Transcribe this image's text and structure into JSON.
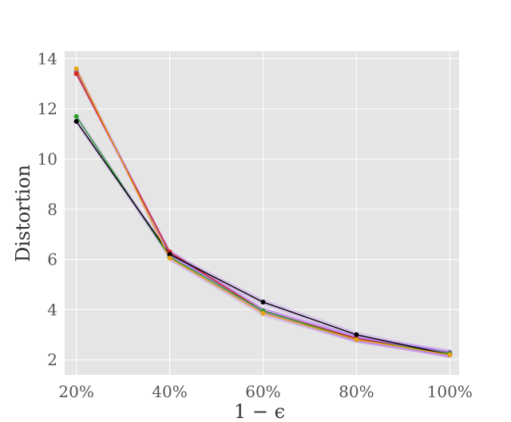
{
  "chart_data": {
    "type": "line",
    "title": "",
    "xlabel": "1 − ϵ",
    "ylabel": "Distortion",
    "categories": [
      "20%",
      "40%",
      "60%",
      "80%",
      "100%"
    ],
    "x": [
      20,
      40,
      60,
      80,
      100
    ],
    "xlim": [
      17.5,
      102
    ],
    "ylim": [
      1.4,
      14.3
    ],
    "yticks": [
      2,
      4,
      6,
      8,
      10,
      12,
      14
    ],
    "grid": true,
    "background": "#e5e5e5",
    "grid_color": "#ffffff",
    "band_color": "#a855f7",
    "series": [
      {
        "color": "#9467bd",
        "values": [
          13.5,
          6.25,
          3.95,
          2.85,
          2.3
        ]
      },
      {
        "color": "#d62728",
        "values": [
          13.4,
          6.3,
          3.95,
          2.85,
          2.2
        ]
      },
      {
        "color": "#2ca02c",
        "values": [
          11.7,
          6.1,
          3.95,
          2.8,
          2.25
        ]
      },
      {
        "color": "#000000",
        "values": [
          11.5,
          6.2,
          4.3,
          3.0,
          2.2
        ]
      },
      {
        "color": "#e8a317",
        "values": [
          13.6,
          6.05,
          3.85,
          2.8,
          2.2
        ]
      }
    ]
  }
}
